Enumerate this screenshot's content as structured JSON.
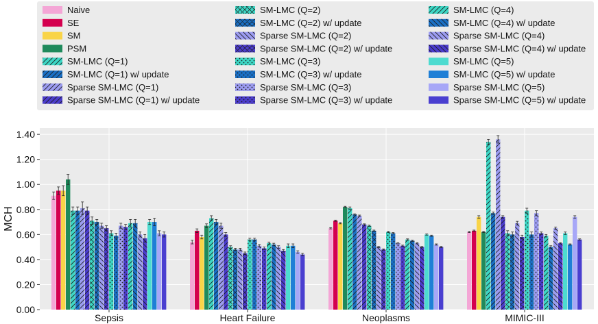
{
  "chart_data": {
    "type": "bar",
    "title": "",
    "xlabel": "",
    "ylabel": "MCH",
    "ylim": [
      0,
      1.45
    ],
    "yticks": [
      "0.00",
      "0.20",
      "0.40",
      "0.60",
      "0.80",
      "1.00",
      "1.20",
      "1.40"
    ],
    "grid": true,
    "legend_placement": "top",
    "categories": [
      "Sepsis",
      "Heart Failure",
      "Neoplasms",
      "MIMIC-III"
    ],
    "series": [
      {
        "name": "Naive",
        "color": "#f4a6d6",
        "hatch": "none",
        "values": [
          0.91,
          0.54,
          0.65,
          0.62
        ],
        "errors": [
          0.03,
          0.015,
          0.005,
          0.005
        ]
      },
      {
        "name": "SE",
        "color": "#d4004f",
        "hatch": "none",
        "values": [
          0.95,
          0.63,
          0.71,
          0.63
        ],
        "errors": [
          0.03,
          0.015,
          0.005,
          0.005
        ]
      },
      {
        "name": "SM",
        "color": "#f9d448",
        "hatch": "none",
        "values": [
          0.95,
          0.58,
          0.69,
          0.74
        ],
        "errors": [
          0.04,
          0.015,
          0.005,
          0.01
        ]
      },
      {
        "name": "PSM",
        "color": "#1f8a5c",
        "hatch": "none",
        "values": [
          1.04,
          0.67,
          0.82,
          0.62
        ],
        "errors": [
          0.04,
          0.015,
          0.005,
          0.005
        ]
      },
      {
        "name": "SM-LMC (Q=1)",
        "color": "#3dd6c4",
        "hatch": "fwd",
        "values": [
          0.79,
          0.73,
          0.81,
          1.34
        ],
        "errors": [
          0.03,
          0.02,
          0.01,
          0.02
        ]
      },
      {
        "name": "SM-LMC (Q=1) w/ update",
        "color": "#1a6fc4",
        "hatch": "fwd",
        "values": [
          0.79,
          0.7,
          0.76,
          0.77
        ],
        "errors": [
          0.03,
          0.02,
          0.005,
          0.01
        ]
      },
      {
        "name": "Sparse SM-LMC (Q=1)",
        "color": "#9b9bf0",
        "hatch": "fwd",
        "values": [
          0.81,
          0.67,
          0.75,
          1.36
        ],
        "errors": [
          0.05,
          0.02,
          0.005,
          0.03
        ]
      },
      {
        "name": "Sparse SM-LMC (Q=1) w/ update",
        "color": "#4b3ccc",
        "hatch": "fwd",
        "values": [
          0.79,
          0.6,
          0.68,
          0.74
        ],
        "errors": [
          0.03,
          0.015,
          0.005,
          0.01
        ]
      },
      {
        "name": "SM-LMC (Q=2)",
        "color": "#3dd6c4",
        "hatch": "cross",
        "values": [
          0.71,
          0.5,
          0.67,
          0.61
        ],
        "errors": [
          0.03,
          0.01,
          0.005,
          0.02
        ]
      },
      {
        "name": "SM-LMC (Q=2) w/ update",
        "color": "#1a6fc4",
        "hatch": "cross",
        "values": [
          0.7,
          0.48,
          0.63,
          0.6
        ],
        "errors": [
          0.02,
          0.01,
          0.005,
          0.02
        ]
      },
      {
        "name": "Sparse SM-LMC (Q=2)",
        "color": "#9b9bf0",
        "hatch": "back",
        "values": [
          0.67,
          0.48,
          0.5,
          0.69
        ],
        "errors": [
          0.02,
          0.01,
          0.005,
          0.015
        ]
      },
      {
        "name": "Sparse SM-LMC (Q=2) w/ update",
        "color": "#4b3ccc",
        "hatch": "cross",
        "values": [
          0.65,
          0.45,
          0.48,
          0.58
        ],
        "errors": [
          0.02,
          0.01,
          0.005,
          0.015
        ]
      },
      {
        "name": "SM-LMC (Q=3)",
        "color": "#3dd6c4",
        "hatch": "dots",
        "values": [
          0.61,
          0.56,
          0.62,
          0.79
        ],
        "errors": [
          0.02,
          0.01,
          0.005,
          0.02
        ]
      },
      {
        "name": "SM-LMC (Q=3) w/ update",
        "color": "#1a6fc4",
        "hatch": "dots",
        "values": [
          0.59,
          0.56,
          0.61,
          0.6
        ],
        "errors": [
          0.02,
          0.01,
          0.005,
          0.02
        ]
      },
      {
        "name": "Sparse SM-LMC (Q=3)",
        "color": "#9b9bf0",
        "hatch": "dots",
        "values": [
          0.67,
          0.51,
          0.53,
          0.77
        ],
        "errors": [
          0.02,
          0.01,
          0.005,
          0.02
        ]
      },
      {
        "name": "Sparse SM-LMC (Q=3) w/ update",
        "color": "#4b3ccc",
        "hatch": "dots",
        "values": [
          0.66,
          0.49,
          0.51,
          0.61
        ],
        "errors": [
          0.02,
          0.01,
          0.005,
          0.01
        ]
      },
      {
        "name": "SM-LMC (Q=4)",
        "color": "#3dd6c4",
        "hatch": "fwd",
        "values": [
          0.69,
          0.53,
          0.56,
          0.59
        ],
        "errors": [
          0.03,
          0.01,
          0.005,
          0.01
        ]
      },
      {
        "name": "SM-LMC (Q=4) w/ update",
        "color": "#1a6fc4",
        "hatch": "back",
        "values": [
          0.69,
          0.52,
          0.55,
          0.5
        ],
        "errors": [
          0.03,
          0.01,
          0.005,
          0.01
        ]
      },
      {
        "name": "Sparse SM-LMC (Q=4)",
        "color": "#9b9bf0",
        "hatch": "back",
        "values": [
          0.6,
          0.5,
          0.53,
          0.65
        ],
        "errors": [
          0.02,
          0.01,
          0.005,
          0.01
        ]
      },
      {
        "name": "Sparse SM-LMC (Q=4) w/ update",
        "color": "#4b3ccc",
        "hatch": "back",
        "values": [
          0.57,
          0.47,
          0.5,
          0.53
        ],
        "errors": [
          0.03,
          0.01,
          0.005,
          0.005
        ]
      },
      {
        "name": "SM-LMC (Q=5)",
        "color": "#4ddbd0",
        "hatch": "none",
        "values": [
          0.7,
          0.51,
          0.6,
          0.61
        ],
        "errors": [
          0.02,
          0.015,
          0.005,
          0.01
        ]
      },
      {
        "name": "SM-LMC (Q=5) w/ update",
        "color": "#1f7fd6",
        "hatch": "none",
        "values": [
          0.7,
          0.51,
          0.59,
          0.52
        ],
        "errors": [
          0.03,
          0.015,
          0.005,
          0.005
        ]
      },
      {
        "name": "Sparse SM-LMC (Q=5)",
        "color": "#a7a7f7",
        "hatch": "none",
        "values": [
          0.61,
          0.46,
          0.52,
          0.74
        ],
        "errors": [
          0.02,
          0.01,
          0.005,
          0.01
        ]
      },
      {
        "name": "Sparse SM-LMC (Q=5) w/ update",
        "color": "#4a3fd0",
        "hatch": "none",
        "values": [
          0.6,
          0.44,
          0.5,
          0.56
        ],
        "errors": [
          0.02,
          0.01,
          0.005,
          0.005
        ]
      }
    ]
  }
}
